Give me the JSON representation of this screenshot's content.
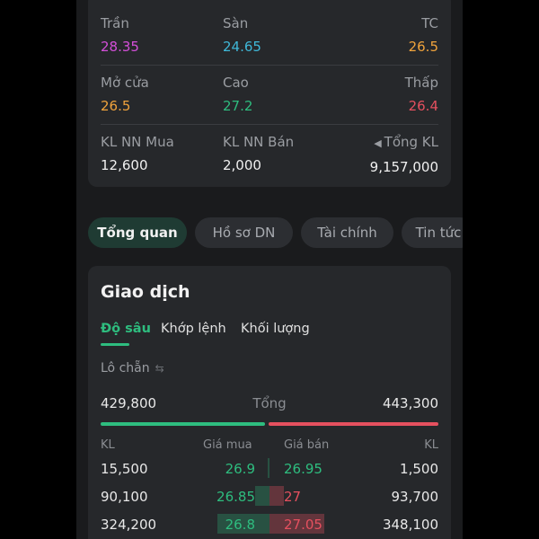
{
  "stats": {
    "rows": [
      [
        {
          "label": "Trần",
          "value": "28.35",
          "color": "#d34fd8"
        },
        {
          "label": "Sàn",
          "value": "24.65",
          "color": "#3fb8d8"
        },
        {
          "label": "TC",
          "value": "26.5",
          "color": "#f0a33c"
        }
      ],
      [
        {
          "label": "Mở cửa",
          "value": "26.5",
          "color": "#f0a33c"
        },
        {
          "label": "Cao",
          "value": "27.2",
          "color": "#2ebd7f"
        },
        {
          "label": "Thấp",
          "value": "26.4",
          "color": "#e5505f"
        }
      ],
      [
        {
          "label": "KL NN Mua",
          "value": "12,600",
          "color": "#f0f0f0"
        },
        {
          "label": "KL NN Bán",
          "value": "2,000",
          "color": "#f0f0f0"
        },
        {
          "label": "Tổng KL",
          "value": "9,157,000",
          "color": "#f0f0f0",
          "icon": "caret-left-icon"
        }
      ]
    ]
  },
  "tabs": [
    {
      "label": "Tổng quan",
      "active": true
    },
    {
      "label": "Hồ sơ DN",
      "active": false
    },
    {
      "label": "Tài chính",
      "active": false
    },
    {
      "label": "Tin tức",
      "active": false
    }
  ],
  "trading": {
    "title": "Giao dịch",
    "subtabs": [
      {
        "label": "Độ sâu",
        "active": true
      },
      {
        "label": "Khớp lệnh",
        "active": false
      },
      {
        "label": "Khối lượng",
        "active": false
      }
    ],
    "odd_lot_label": "Lô chẵn",
    "odd_lot_icon": "swap-icon",
    "total_buy": "429,800",
    "total_label": "Tổng",
    "total_sell": "443,300",
    "headers": {
      "kl_buy": "KL",
      "bid": "Giá mua",
      "ask": "Giá bán",
      "kl_sell": "KL"
    },
    "orders": [
      {
        "buy_vol": "15,500",
        "bid": "26.9",
        "ask": "26.95",
        "sell_vol": "1,500",
        "buy_fill": 0.02,
        "sell_fill": 0.0,
        "ask_color": "#2ebd7f"
      },
      {
        "buy_vol": "90,100",
        "bid": "26.85",
        "ask": "27",
        "sell_vol": "93,700",
        "buy_fill": 0.2,
        "sell_fill": 0.2,
        "ask_color": "#e5505f"
      },
      {
        "buy_vol": "324,200",
        "bid": "26.8",
        "ask": "27.05",
        "sell_vol": "348,100",
        "buy_fill": 0.72,
        "sell_fill": 0.76,
        "ask_color": "#e5505f"
      }
    ]
  }
}
